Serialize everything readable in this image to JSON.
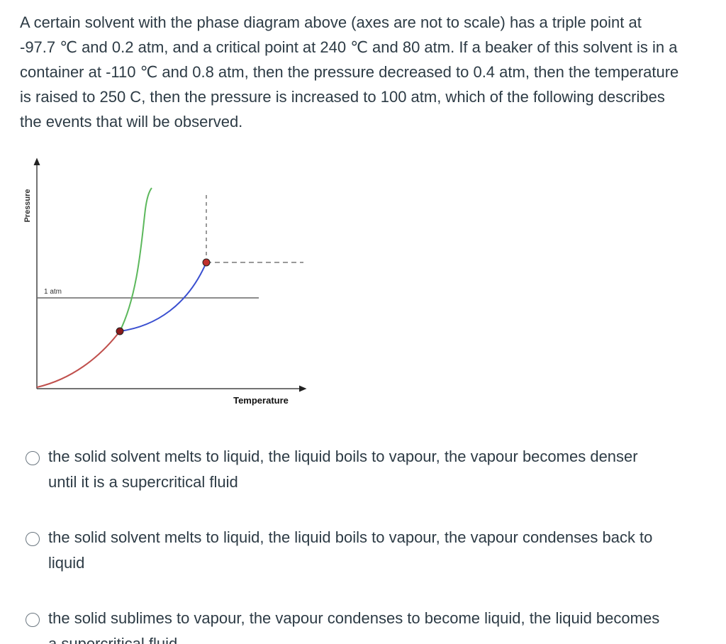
{
  "question": "A certain solvent with the phase diagram above (axes are not to scale) has a triple point at -97.7 ℃ and 0.2 atm, and a critical point at 240 ℃ and 80 atm. If a beaker of this solvent is in a container at -110 ℃ and 0.8 atm, then the pressure decreased to 0.4 atm, then the temperature is raised to 250 C, then the pressure is increased to 100 atm, which of the following describes the events that will be observed.",
  "diagram": {
    "y_axis_label": "Pressure",
    "x_axis_label": "Temperature",
    "reference_line_label": "1 atm"
  },
  "options": [
    "the solid solvent melts to liquid, the liquid boils to vapour, the vapour becomes denser until it is a supercritical fluid",
    "the solid solvent melts to liquid, the liquid boils to vapour, the vapour condenses back to liquid",
    "the solid sublimes to vapour, the vapour condenses to become liquid, the liquid becomes a supercritical fluid"
  ]
}
